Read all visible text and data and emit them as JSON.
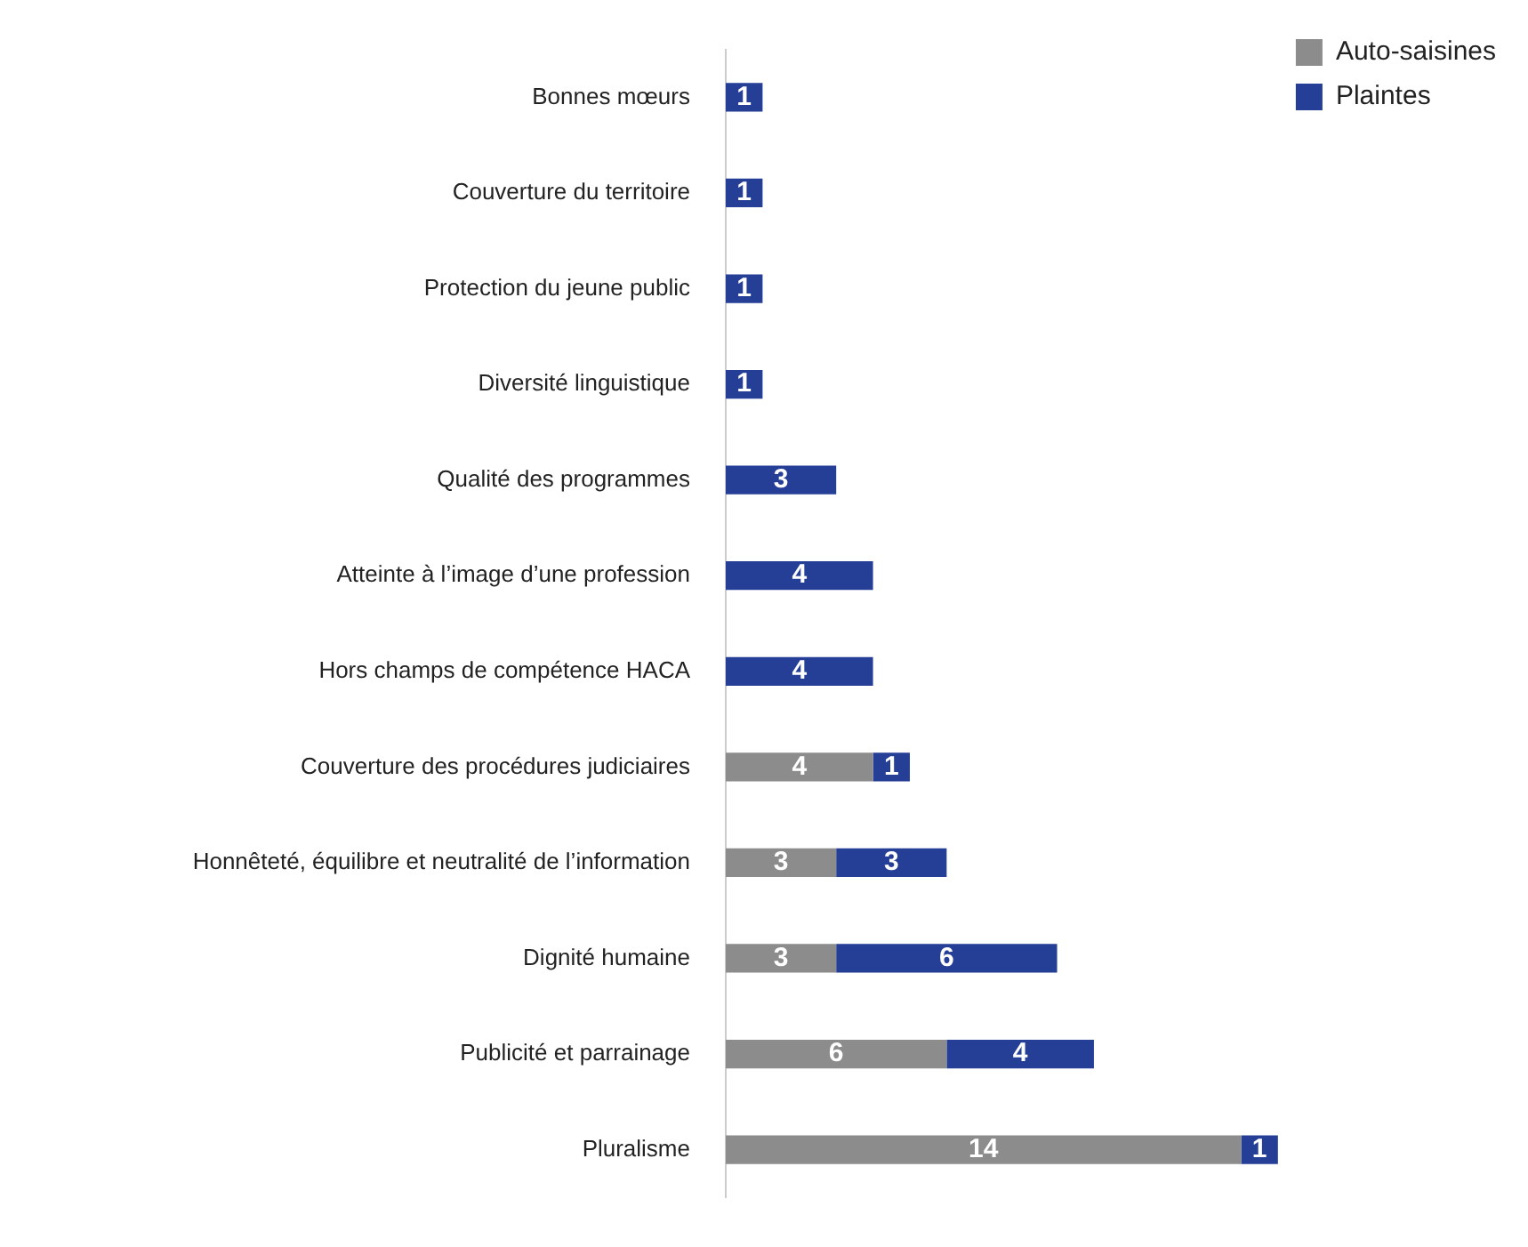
{
  "chart_data": {
    "type": "bar",
    "orientation": "horizontal",
    "stacked": true,
    "data_labels": true,
    "legend": "top right",
    "tick_labels": "y",
    "categories": [
      "Bonnes mœurs",
      "Couverture du territoire",
      "Protection du jeune public",
      "Diversité linguistique",
      "Qualité des programmes",
      "Atteinte à l’image d’une profession",
      "Hors champs de compétence HACA",
      "Couverture des procédures judiciaires",
      "Honnêteté, équilibre et neutralité de l’information",
      "Dignité humaine",
      "Publicité et parrainage",
      "Pluralisme"
    ],
    "series": [
      {
        "name": "Auto-saisines",
        "color": "#8c8c8c",
        "values": [
          null,
          null,
          null,
          null,
          null,
          null,
          null,
          4,
          3,
          3,
          6,
          14
        ]
      },
      {
        "name": "Plaintes",
        "color": "#253f97",
        "values": [
          1,
          1,
          1,
          1,
          3,
          4,
          4,
          1,
          3,
          6,
          4,
          1
        ]
      }
    ]
  }
}
